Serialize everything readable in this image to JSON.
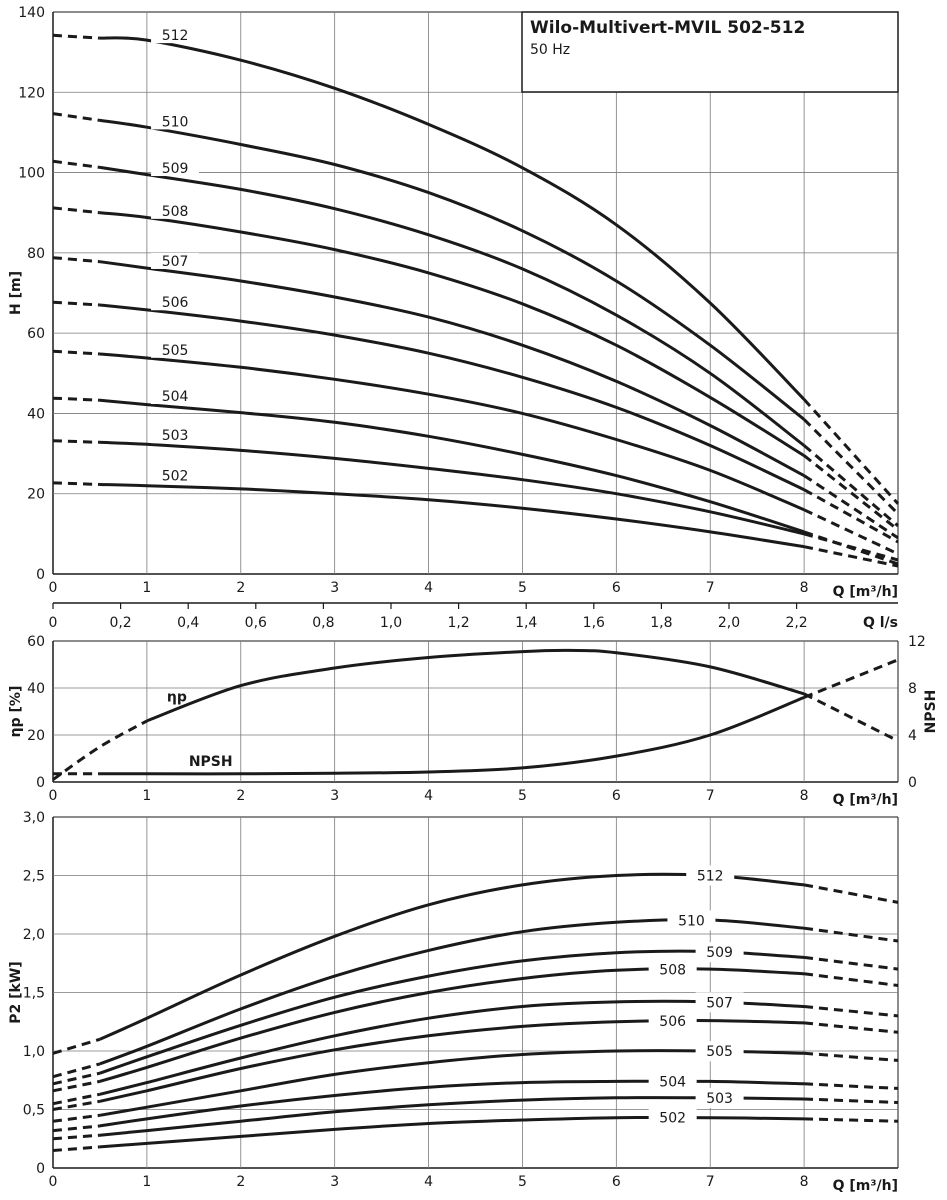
{
  "title": "Wilo-Multivert-MVIL 502-512",
  "subtitle": "50 Hz",
  "chart_data": [
    {
      "id": "head",
      "type": "line",
      "xlabel": "Q [m³/h]",
      "ylabel": "H [m]",
      "xlim": [
        0,
        9
      ],
      "ylim": [
        0,
        140
      ],
      "x_ticks": [
        "0",
        "1",
        "2",
        "3",
        "4",
        "5",
        "6",
        "7",
        "8"
      ],
      "y_ticks": [
        "0",
        "20",
        "40",
        "60",
        "80",
        "100",
        "120",
        "140"
      ],
      "secondary_x": {
        "label": "Q l/s",
        "ticks": [
          "0",
          "0,2",
          "0,4",
          "0,6",
          "0,8",
          "1,0",
          "1,2",
          "1,4",
          "1,6",
          "1,8",
          "2,0",
          "2,2"
        ]
      },
      "grid": true,
      "solid_range": [
        0.5,
        8
      ],
      "dashed_range": [
        0,
        9
      ],
      "series": [
        {
          "name": "512",
          "values": [
            [
              0,
              134.2
            ],
            [
              0.5,
              133.5
            ],
            [
              1,
              133
            ],
            [
              2,
              128
            ],
            [
              3,
              121
            ],
            [
              4,
              112
            ],
            [
              5,
              101.2
            ],
            [
              6,
              87
            ],
            [
              7,
              67.5
            ],
            [
              8,
              43.5
            ],
            [
              9,
              17.5
            ]
          ]
        },
        {
          "name": "510",
          "values": [
            [
              0,
              114.7
            ],
            [
              0.5,
              113
            ],
            [
              1,
              111.3
            ],
            [
              2,
              107
            ],
            [
              3,
              102
            ],
            [
              4,
              95
            ],
            [
              5,
              85.5
            ],
            [
              6,
              73
            ],
            [
              7,
              57
            ],
            [
              8,
              38.5
            ],
            [
              9,
              15
            ]
          ]
        },
        {
          "name": "509",
          "values": [
            [
              0,
              102.8
            ],
            [
              0.5,
              101.3
            ],
            [
              1,
              99.5
            ],
            [
              2,
              95.8
            ],
            [
              3,
              91
            ],
            [
              4,
              84.5
            ],
            [
              5,
              76
            ],
            [
              6,
              64.5
            ],
            [
              7,
              50
            ],
            [
              8,
              32
            ],
            [
              9,
              12
            ]
          ]
        },
        {
          "name": "508",
          "values": [
            [
              0,
              91.2
            ],
            [
              0.5,
              90
            ],
            [
              1,
              88.8
            ],
            [
              2,
              85.2
            ],
            [
              3,
              80.8
            ],
            [
              4,
              75
            ],
            [
              5,
              67.3
            ],
            [
              6,
              57
            ],
            [
              7,
              44
            ],
            [
              8,
              29.5
            ],
            [
              9,
              11
            ]
          ]
        },
        {
          "name": "507",
          "values": [
            [
              0,
              78.8
            ],
            [
              0.5,
              77.8
            ],
            [
              1,
              76.2
            ],
            [
              2,
              73
            ],
            [
              3,
              69
            ],
            [
              4,
              64
            ],
            [
              5,
              57
            ],
            [
              6,
              48
            ],
            [
              7,
              37
            ],
            [
              8,
              24.5
            ],
            [
              9,
              9
            ]
          ]
        },
        {
          "name": "506",
          "values": [
            [
              0,
              67.7
            ],
            [
              0.5,
              67
            ],
            [
              1,
              65.8
            ],
            [
              2,
              63
            ],
            [
              3,
              59.5
            ],
            [
              4,
              55
            ],
            [
              5,
              49
            ],
            [
              6,
              41.5
            ],
            [
              7,
              32
            ],
            [
              8,
              21
            ],
            [
              9,
              8
            ]
          ]
        },
        {
          "name": "505",
          "values": [
            [
              0,
              55.5
            ],
            [
              0.5,
              54.8
            ],
            [
              1,
              53.8
            ],
            [
              2,
              51.5
            ],
            [
              3,
              48.5
            ],
            [
              4,
              44.8
            ],
            [
              5,
              40
            ],
            [
              6,
              33.5
            ],
            [
              7,
              25.8
            ],
            [
              8,
              16
            ],
            [
              9,
              5
            ]
          ]
        },
        {
          "name": "504",
          "values": [
            [
              0,
              43.8
            ],
            [
              0.5,
              43.3
            ],
            [
              1,
              42.2
            ],
            [
              2,
              40.2
            ],
            [
              3,
              37.8
            ],
            [
              4,
              34.3
            ],
            [
              5,
              29.8
            ],
            [
              6,
              24.5
            ],
            [
              7,
              18
            ],
            [
              8,
              10.5
            ],
            [
              9,
              2.5
            ]
          ]
        },
        {
          "name": "503",
          "values": [
            [
              0,
              33.2
            ],
            [
              0.5,
              32.8
            ],
            [
              1,
              32.3
            ],
            [
              2,
              30.8
            ],
            [
              3,
              28.8
            ],
            [
              4,
              26.3
            ],
            [
              5,
              23.5
            ],
            [
              6,
              20
            ],
            [
              7,
              15.5
            ],
            [
              8,
              10
            ],
            [
              9,
              3.5
            ]
          ]
        },
        {
          "name": "502",
          "values": [
            [
              0,
              22.7
            ],
            [
              0.5,
              22.3
            ],
            [
              1,
              22
            ],
            [
              2,
              21.2
            ],
            [
              3,
              20
            ],
            [
              4,
              18.5
            ],
            [
              5,
              16.4
            ],
            [
              6,
              13.7
            ],
            [
              7,
              10.5
            ],
            [
              8,
              6.8
            ],
            [
              9,
              2
            ]
          ]
        }
      ]
    },
    {
      "id": "efficiency",
      "type": "line",
      "xlabel": "Q [m³/h]",
      "ylabel": "ηp [%]",
      "y2label": "NPSH",
      "xlim": [
        0,
        9
      ],
      "ylim": [
        0,
        60
      ],
      "y2lim": [
        0,
        12
      ],
      "x_ticks": [
        "0",
        "1",
        "2",
        "3",
        "4",
        "5",
        "6",
        "7",
        "8"
      ],
      "y_ticks": [
        "0",
        "20",
        "40",
        "60"
      ],
      "y2_ticks": [
        "0",
        "4",
        "8",
        "12"
      ],
      "grid": true,
      "series": [
        {
          "name": "ηp",
          "axis": "left",
          "values": [
            [
              0,
              1
            ],
            [
              0.5,
              15
            ],
            [
              1,
              26
            ],
            [
              2,
              41
            ],
            [
              3,
              48.5
            ],
            [
              4,
              53
            ],
            [
              5,
              55.5
            ],
            [
              5.5,
              56
            ],
            [
              6,
              55
            ],
            [
              7,
              49
            ],
            [
              8,
              37.5
            ],
            [
              9,
              17.5
            ]
          ]
        },
        {
          "name": "NPSH",
          "axis": "right",
          "values": [
            [
              0,
              0.7
            ],
            [
              0.5,
              0.7
            ],
            [
              1,
              0.7
            ],
            [
              2,
              0.7
            ],
            [
              3,
              0.75
            ],
            [
              4,
              0.85
            ],
            [
              5,
              1.2
            ],
            [
              6,
              2.2
            ],
            [
              7,
              4
            ],
            [
              8,
              7.2
            ],
            [
              9,
              10.4
            ]
          ]
        }
      ]
    },
    {
      "id": "power",
      "type": "line",
      "xlabel": "Q [m³/h]",
      "ylabel": "P2 [kW]",
      "xlim": [
        0,
        9
      ],
      "ylim": [
        0,
        3.0
      ],
      "x_ticks": [
        "0",
        "1",
        "2",
        "3",
        "4",
        "5",
        "6",
        "7",
        "8"
      ],
      "y_ticks": [
        "0",
        "0,5",
        "1,0",
        "1,5",
        "2,0",
        "2,5",
        "3,0"
      ],
      "grid": true,
      "solid_range": [
        0.5,
        8
      ],
      "dashed_range": [
        0,
        9
      ],
      "series": [
        {
          "name": "512",
          "values": [
            [
              0,
              0.98
            ],
            [
              0.5,
              1.1
            ],
            [
              1,
              1.28
            ],
            [
              2,
              1.65
            ],
            [
              3,
              1.98
            ],
            [
              4,
              2.25
            ],
            [
              5,
              2.42
            ],
            [
              6,
              2.5
            ],
            [
              7,
              2.5
            ],
            [
              8,
              2.42
            ],
            [
              9,
              2.27
            ]
          ]
        },
        {
          "name": "510",
          "values": [
            [
              0,
              0.78
            ],
            [
              0.5,
              0.89
            ],
            [
              1,
              1.04
            ],
            [
              2,
              1.36
            ],
            [
              3,
              1.64
            ],
            [
              4,
              1.86
            ],
            [
              5,
              2.02
            ],
            [
              6,
              2.1
            ],
            [
              7,
              2.12
            ],
            [
              8,
              2.05
            ],
            [
              9,
              1.94
            ]
          ]
        },
        {
          "name": "509",
          "values": [
            [
              0,
              0.72
            ],
            [
              0.5,
              0.81
            ],
            [
              1,
              0.95
            ],
            [
              2,
              1.22
            ],
            [
              3,
              1.46
            ],
            [
              4,
              1.64
            ],
            [
              5,
              1.77
            ],
            [
              6,
              1.84
            ],
            [
              7,
              1.85
            ],
            [
              8,
              1.8
            ],
            [
              9,
              1.7
            ]
          ]
        },
        {
          "name": "508",
          "values": [
            [
              0,
              0.66
            ],
            [
              0.5,
              0.74
            ],
            [
              1,
              0.86
            ],
            [
              2,
              1.11
            ],
            [
              3,
              1.33
            ],
            [
              4,
              1.5
            ],
            [
              5,
              1.62
            ],
            [
              6,
              1.69
            ],
            [
              7,
              1.7
            ],
            [
              8,
              1.66
            ],
            [
              9,
              1.56
            ]
          ]
        },
        {
          "name": "507",
          "values": [
            [
              0,
              0.55
            ],
            [
              0.5,
              0.63
            ],
            [
              1,
              0.73
            ],
            [
              2,
              0.94
            ],
            [
              3,
              1.13
            ],
            [
              4,
              1.28
            ],
            [
              5,
              1.38
            ],
            [
              6,
              1.42
            ],
            [
              7,
              1.42
            ],
            [
              8,
              1.38
            ],
            [
              9,
              1.3
            ]
          ]
        },
        {
          "name": "506",
          "values": [
            [
              0,
              0.5
            ],
            [
              0.5,
              0.57
            ],
            [
              1,
              0.66
            ],
            [
              2,
              0.85
            ],
            [
              3,
              1.01
            ],
            [
              4,
              1.13
            ],
            [
              5,
              1.21
            ],
            [
              6,
              1.25
            ],
            [
              7,
              1.26
            ],
            [
              8,
              1.24
            ],
            [
              9,
              1.16
            ]
          ]
        },
        {
          "name": "505",
          "values": [
            [
              0,
              0.4
            ],
            [
              0.5,
              0.45
            ],
            [
              1,
              0.52
            ],
            [
              2,
              0.66
            ],
            [
              3,
              0.8
            ],
            [
              4,
              0.9
            ],
            [
              5,
              0.97
            ],
            [
              6,
              1.0
            ],
            [
              7,
              1.0
            ],
            [
              8,
              0.98
            ],
            [
              9,
              0.92
            ]
          ]
        },
        {
          "name": "504",
          "values": [
            [
              0,
              0.32
            ],
            [
              0.5,
              0.36
            ],
            [
              1,
              0.42
            ],
            [
              2,
              0.53
            ],
            [
              3,
              0.62
            ],
            [
              4,
              0.69
            ],
            [
              5,
              0.73
            ],
            [
              6,
              0.74
            ],
            [
              7,
              0.74
            ],
            [
              8,
              0.72
            ],
            [
              9,
              0.68
            ]
          ]
        },
        {
          "name": "503",
          "values": [
            [
              0,
              0.25
            ],
            [
              0.5,
              0.28
            ],
            [
              1,
              0.32
            ],
            [
              2,
              0.4
            ],
            [
              3,
              0.48
            ],
            [
              4,
              0.54
            ],
            [
              5,
              0.58
            ],
            [
              6,
              0.6
            ],
            [
              7,
              0.6
            ],
            [
              8,
              0.59
            ],
            [
              9,
              0.56
            ]
          ]
        },
        {
          "name": "502",
          "values": [
            [
              0,
              0.15
            ],
            [
              0.5,
              0.18
            ],
            [
              1,
              0.21
            ],
            [
              2,
              0.27
            ],
            [
              3,
              0.33
            ],
            [
              4,
              0.38
            ],
            [
              5,
              0.41
            ],
            [
              6,
              0.43
            ],
            [
              7,
              0.43
            ],
            [
              8,
              0.42
            ],
            [
              9,
              0.4
            ]
          ]
        }
      ]
    }
  ]
}
